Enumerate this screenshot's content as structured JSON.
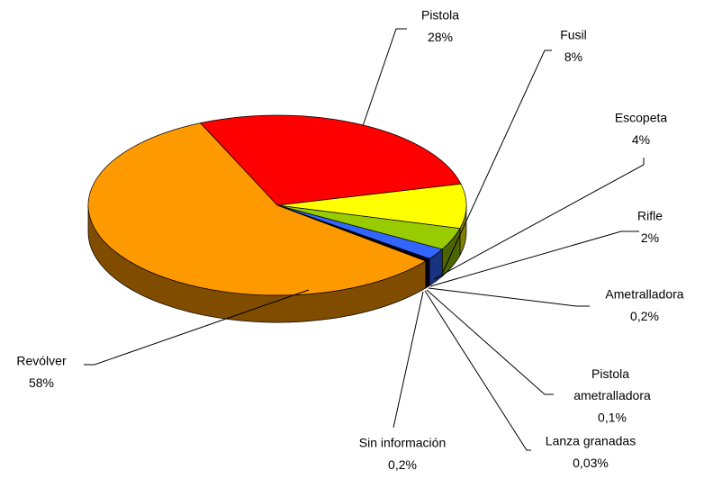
{
  "chart_data": {
    "type": "pie3d",
    "categories": [
      "Pistola",
      "Fusil",
      "Escopeta",
      "Rifle",
      "Ametralladora",
      "Pistola ametralladora",
      "Lanza granadas",
      "Sin información",
      "Revólver"
    ],
    "values": [
      28,
      8,
      4,
      2,
      0.2,
      0.1,
      0.03,
      0.2,
      58
    ],
    "value_labels": [
      "28%",
      "8%",
      "4%",
      "2%",
      "0,2%",
      "0,1%",
      "0,03%",
      "0,2%",
      "58%"
    ],
    "colors": [
      "#ff0000",
      "#ffff00",
      "#99cc00",
      "#3366ff",
      "#000080",
      "#660066",
      "#333333",
      "#000000",
      "#ff9900"
    ]
  }
}
